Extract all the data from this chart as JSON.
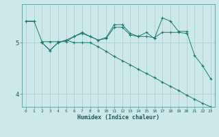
{
  "title": "",
  "xlabel": "Humidex (Indice chaleur)",
  "background_color": "#cce8e8",
  "grid_color": "#aacccc",
  "line_color": "#1a7a6e",
  "xlim": [
    -0.5,
    23.5
  ],
  "ylim": [
    3.75,
    5.75
  ],
  "yticks": [
    4,
    5
  ],
  "xticks": [
    0,
    1,
    2,
    3,
    4,
    5,
    6,
    7,
    8,
    9,
    10,
    11,
    12,
    13,
    14,
    15,
    16,
    17,
    18,
    19,
    20,
    21,
    22,
    23
  ],
  "line1_x": [
    0,
    1
  ],
  "line1_y": [
    5.42,
    5.42
  ],
  "line2_x": [
    0,
    1,
    2,
    3,
    4,
    5,
    6,
    7,
    8,
    9,
    10,
    11,
    12,
    13,
    14,
    15,
    16,
    17,
    18,
    19,
    20
  ],
  "line2_y": [
    5.42,
    5.42,
    5.02,
    5.02,
    5.02,
    5.02,
    5.12,
    5.18,
    5.12,
    5.05,
    5.08,
    5.3,
    5.3,
    5.15,
    5.12,
    5.12,
    5.1,
    5.2,
    5.2,
    5.2,
    5.18
  ],
  "line3_x": [
    2,
    3,
    4,
    5,
    6,
    7,
    8,
    9,
    10,
    11,
    12,
    13,
    14,
    15,
    16,
    17,
    18,
    19,
    20,
    21,
    22,
    23
  ],
  "line3_y": [
    5.0,
    4.85,
    5.0,
    5.05,
    5.12,
    5.2,
    5.12,
    5.05,
    5.1,
    5.35,
    5.35,
    5.18,
    5.12,
    5.2,
    5.08,
    5.48,
    5.42,
    5.22,
    5.22,
    4.75,
    4.55,
    4.3
  ],
  "line4_x": [
    2,
    3,
    4,
    5,
    6,
    7,
    8,
    9,
    10,
    11,
    12,
    13,
    14,
    15,
    16,
    17,
    18,
    19,
    20,
    21,
    22,
    23
  ],
  "line4_y": [
    5.0,
    4.85,
    5.0,
    5.05,
    5.0,
    5.0,
    5.0,
    4.92,
    4.83,
    4.73,
    4.65,
    4.57,
    4.48,
    4.4,
    4.32,
    4.23,
    4.15,
    4.07,
    3.98,
    3.9,
    3.82,
    3.75
  ]
}
